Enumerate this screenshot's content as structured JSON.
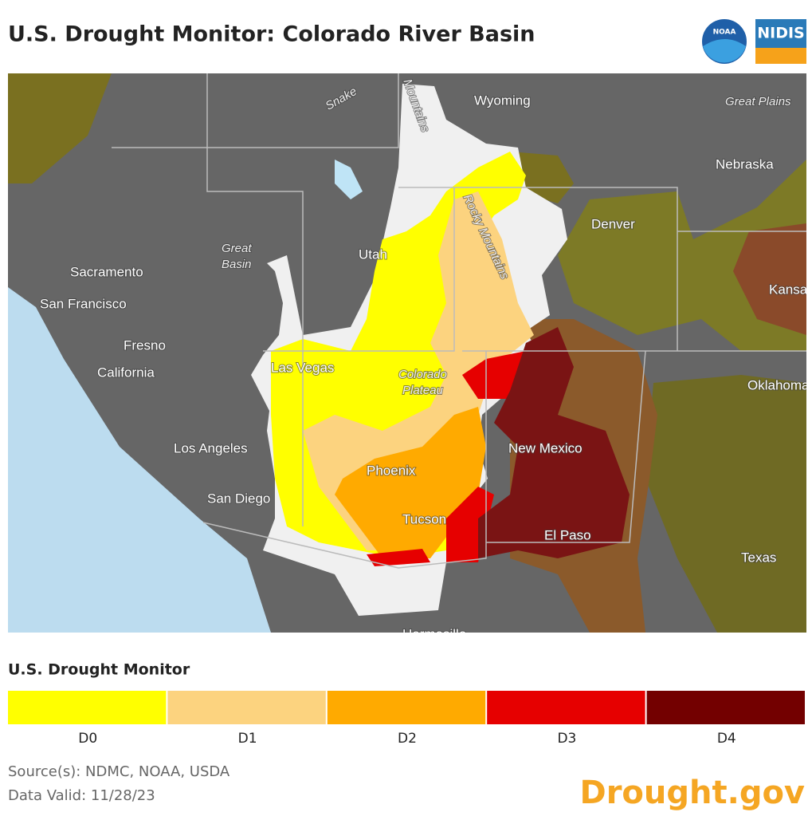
{
  "header": {
    "title": "U.S. Drought Monitor: Colorado River Basin",
    "logo_noaa": "NOAA",
    "logo_nidis": "NIDIS"
  },
  "map": {
    "labels": {
      "snake": "Snake",
      "mountains": "Mountains",
      "wyoming": "Wyoming",
      "great_plains": "Great Plains",
      "nebraska": "Nebraska",
      "rocky_mountains": "Rocky Mountains",
      "denver": "Denver",
      "utah": "Utah",
      "great_basin": [
        "Great",
        "Basin"
      ],
      "sacramento": "Sacramento",
      "san_francisco": "San Francisco",
      "fresno": "Fresno",
      "california": "California",
      "las_vegas": "Las Vegas",
      "colorado_plateau": [
        "Colorado",
        "Plateau"
      ],
      "kansas": "Kansas",
      "oklahoma": "Oklahoma",
      "new_mexico": "New Mexico",
      "los_angeles": "Los Angeles",
      "phoenix": "Phoenix",
      "san_diego": "San Diego",
      "tucson": "Tucson",
      "el_paso": "El Paso",
      "texas": "Texas",
      "hermosillo": "Hermosillo"
    }
  },
  "legend": {
    "title": "U.S. Drought Monitor",
    "items": [
      {
        "label": "D0",
        "color": "#ffff00"
      },
      {
        "label": "D1",
        "color": "#fcd37f"
      },
      {
        "label": "D2",
        "color": "#ffaa00"
      },
      {
        "label": "D3",
        "color": "#e60000"
      },
      {
        "label": "D4",
        "color": "#730000"
      }
    ]
  },
  "footer": {
    "source": "Source(s): NDMC, NOAA, USDA",
    "valid": "Data Valid: 11/28/23",
    "brand": "Drought.gov"
  }
}
